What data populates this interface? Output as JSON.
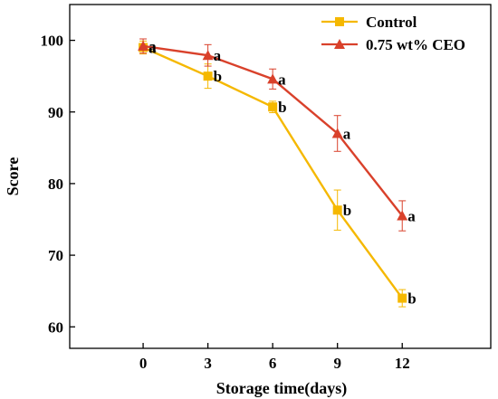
{
  "chart_data": {
    "type": "line",
    "xlabel": "Storage time(days)",
    "ylabel": "Score",
    "x": [
      0,
      3,
      6,
      9,
      12
    ],
    "xticks": [
      "0",
      "3",
      "6",
      "9",
      "12"
    ],
    "xlim": [
      -3.4,
      16.1
    ],
    "ylim": [
      57,
      105
    ],
    "yticks": [
      "60",
      "70",
      "80",
      "90",
      "100"
    ],
    "grid": false,
    "legend_position": "top-right",
    "series": [
      {
        "name": "Control",
        "marker": "square",
        "color": "#f5b800",
        "values": [
          99.0,
          95.0,
          90.7,
          76.3,
          64.0
        ],
        "errors": [
          0.9,
          1.7,
          0.8,
          2.8,
          1.2
        ],
        "labels": [
          "a",
          "b",
          "b",
          "b",
          "b"
        ]
      },
      {
        "name": "0.75 wt% CEO",
        "marker": "triangle",
        "color": "#d9412b",
        "values": [
          99.2,
          97.9,
          94.6,
          87.0,
          75.5
        ],
        "errors": [
          1.0,
          1.5,
          1.4,
          2.5,
          2.1
        ],
        "labels": [
          "a",
          "a",
          "a",
          "a",
          "a"
        ]
      }
    ]
  }
}
